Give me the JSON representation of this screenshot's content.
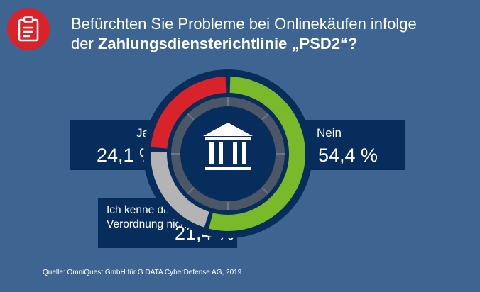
{
  "title": {
    "line1": "Befürchten Sie Probleme bei Onlinekäufen infolge",
    "line2_prefix": "der ",
    "line2_bold": "Zahlungsdiensterichtlinie „PSD2“?"
  },
  "source": "Quelle: OmniQuest GmbH für G DATA CyberDefense AG, 2019",
  "icons": {
    "badge": "clipboard-icon",
    "center": "bank-building-icon"
  },
  "colors": {
    "background": "#3e6592",
    "box": "#062d5c",
    "ja": "#d8232a",
    "nein": "#7ab929",
    "unknown": "#b4b4b4",
    "badge": "#d8232a"
  },
  "chart_data": {
    "type": "pie",
    "title": "Befürchten Sie Probleme bei Onlinekäufen infolge der Zahlungsdiensterichtlinie „PSD2“?",
    "categories": [
      "Ja",
      "Nein",
      "Ich kenne die Verordnung nicht"
    ],
    "values": [
      24.1,
      54.4,
      21.4
    ],
    "value_labels": [
      "24,1 %",
      "54,4 %",
      "21,4 %"
    ],
    "unit": "%",
    "style": "donut"
  }
}
